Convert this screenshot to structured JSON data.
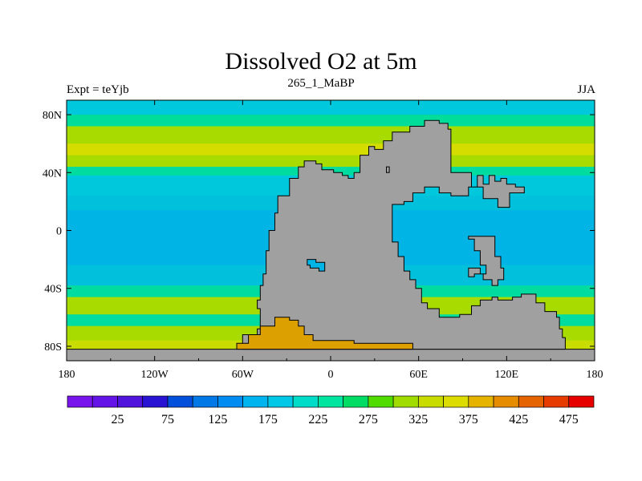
{
  "header": {
    "title": "Dissolved O2 at 5m",
    "subtitle": "265_1_MaBP",
    "left_label": "Expt = teYjb",
    "right_label": "JJA"
  },
  "map": {
    "lon_range": [
      -180,
      180
    ],
    "lat_range": [
      -90,
      90
    ],
    "x_ticks": [
      {
        "value": -180,
        "label": "180"
      },
      {
        "value": -120,
        "label": "120W"
      },
      {
        "value": -60,
        "label": "60W"
      },
      {
        "value": 0,
        "label": "0"
      },
      {
        "value": 60,
        "label": "60E"
      },
      {
        "value": 120,
        "label": "120E"
      },
      {
        "value": 180,
        "label": "180"
      }
    ],
    "y_ticks": [
      {
        "value": 80,
        "label": "80N"
      },
      {
        "value": 40,
        "label": "40N"
      },
      {
        "value": 0,
        "label": "0"
      },
      {
        "value": -40,
        "label": "40S"
      },
      {
        "value": -80,
        "label": "80S"
      }
    ],
    "land_color": "#a0a0a0",
    "ocean_bands": [
      {
        "lat_from": 90,
        "lat_to": 80,
        "color": "#00c8dc"
      },
      {
        "lat_from": 80,
        "lat_to": 72,
        "color": "#00dc9a"
      },
      {
        "lat_from": 72,
        "lat_to": 60,
        "color": "#a8dc00"
      },
      {
        "lat_from": 60,
        "lat_to": 52,
        "color": "#d4dc00"
      },
      {
        "lat_from": 52,
        "lat_to": 44,
        "color": "#a8dc00"
      },
      {
        "lat_from": 44,
        "lat_to": 38,
        "color": "#00dca0"
      },
      {
        "lat_from": 38,
        "lat_to": 24,
        "color": "#00c8dc"
      },
      {
        "lat_from": 24,
        "lat_to": 14,
        "color": "#00c0dc"
      },
      {
        "lat_from": 14,
        "lat_to": -24,
        "color": "#00b4e6"
      },
      {
        "lat_from": -24,
        "lat_to": -38,
        "color": "#00c0dc"
      },
      {
        "lat_from": -38,
        "lat_to": -46,
        "color": "#00dca0"
      },
      {
        "lat_from": -46,
        "lat_to": -58,
        "color": "#a8dc00"
      },
      {
        "lat_from": -58,
        "lat_to": -66,
        "color": "#00dca0"
      },
      {
        "lat_from": -66,
        "lat_to": -76,
        "color": "#a8dc00"
      },
      {
        "lat_from": -76,
        "lat_to": -90,
        "color": "#c8dc00"
      }
    ],
    "land_polygons": [
      [
        [
          -180,
          -90
        ],
        [
          180,
          -90
        ],
        [
          180,
          -82
        ],
        [
          -180,
          -82
        ]
      ],
      [
        [
          -60,
          -72
        ],
        [
          -50,
          -72
        ],
        [
          -50,
          -68
        ],
        [
          -48,
          -68
        ],
        [
          -48,
          -54
        ],
        [
          -50,
          -54
        ],
        [
          -50,
          -48
        ],
        [
          -48,
          -48
        ],
        [
          -48,
          -38
        ],
        [
          -46,
          -38
        ],
        [
          -46,
          -30
        ],
        [
          -44,
          -30
        ],
        [
          -44,
          -14
        ],
        [
          -42,
          -14
        ],
        [
          -42,
          0
        ],
        [
          -38,
          0
        ],
        [
          -38,
          12
        ],
        [
          -36,
          12
        ],
        [
          -36,
          24
        ],
        [
          -28,
          24
        ],
        [
          -28,
          36
        ],
        [
          -22,
          36
        ],
        [
          -22,
          44
        ],
        [
          -18,
          44
        ],
        [
          -18,
          48
        ],
        [
          -10,
          48
        ],
        [
          -10,
          46
        ],
        [
          -6,
          46
        ],
        [
          -6,
          42
        ],
        [
          2,
          42
        ],
        [
          2,
          40
        ],
        [
          8,
          40
        ],
        [
          8,
          38
        ],
        [
          12,
          38
        ],
        [
          12,
          36
        ],
        [
          16,
          36
        ],
        [
          16,
          40
        ],
        [
          20,
          40
        ],
        [
          20,
          52
        ],
        [
          26,
          52
        ],
        [
          26,
          58
        ],
        [
          30,
          58
        ],
        [
          30,
          56
        ],
        [
          36,
          56
        ],
        [
          36,
          62
        ],
        [
          42,
          62
        ],
        [
          42,
          68
        ],
        [
          54,
          68
        ],
        [
          54,
          72
        ],
        [
          64,
          72
        ],
        [
          64,
          76
        ],
        [
          74,
          76
        ],
        [
          74,
          74
        ],
        [
          80,
          74
        ],
        [
          80,
          70
        ],
        [
          82,
          70
        ],
        [
          82,
          40
        ],
        [
          96,
          40
        ],
        [
          96,
          30
        ],
        [
          100,
          30
        ],
        [
          100,
          38
        ],
        [
          104,
          38
        ],
        [
          104,
          32
        ],
        [
          108,
          32
        ],
        [
          108,
          38
        ],
        [
          112,
          38
        ],
        [
          112,
          34
        ],
        [
          116,
          34
        ],
        [
          116,
          36
        ],
        [
          120,
          36
        ],
        [
          120,
          32
        ],
        [
          126,
          32
        ],
        [
          126,
          30
        ],
        [
          132,
          30
        ],
        [
          132,
          26
        ],
        [
          122,
          26
        ],
        [
          122,
          16
        ],
        [
          114,
          16
        ],
        [
          114,
          22
        ],
        [
          104,
          22
        ],
        [
          104,
          30
        ],
        [
          94,
          30
        ],
        [
          94,
          24
        ],
        [
          82,
          24
        ],
        [
          82,
          26
        ],
        [
          74,
          26
        ],
        [
          74,
          30
        ],
        [
          64,
          30
        ],
        [
          64,
          26
        ],
        [
          56,
          26
        ],
        [
          56,
          20
        ],
        [
          50,
          20
        ],
        [
          50,
          18
        ],
        [
          42,
          18
        ],
        [
          42,
          -8
        ],
        [
          46,
          -8
        ],
        [
          46,
          -18
        ],
        [
          50,
          -18
        ],
        [
          50,
          -28
        ],
        [
          54,
          -28
        ],
        [
          54,
          -34
        ],
        [
          58,
          -34
        ],
        [
          58,
          -40
        ],
        [
          62,
          -40
        ],
        [
          62,
          -50
        ],
        [
          66,
          -50
        ],
        [
          66,
          -54
        ],
        [
          74,
          -54
        ],
        [
          74,
          -60
        ],
        [
          88,
          -60
        ],
        [
          88,
          -58
        ],
        [
          96,
          -58
        ],
        [
          96,
          -52
        ],
        [
          102,
          -52
        ],
        [
          102,
          -48
        ],
        [
          110,
          -48
        ],
        [
          110,
          -46
        ],
        [
          114,
          -46
        ],
        [
          114,
          -48
        ],
        [
          124,
          -48
        ],
        [
          124,
          -46
        ],
        [
          130,
          -46
        ],
        [
          130,
          -44
        ],
        [
          140,
          -44
        ],
        [
          140,
          -50
        ],
        [
          146,
          -50
        ],
        [
          146,
          -56
        ],
        [
          154,
          -56
        ],
        [
          154,
          -60
        ],
        [
          156,
          -60
        ],
        [
          156,
          -68
        ],
        [
          158,
          -68
        ],
        [
          158,
          -74
        ],
        [
          160,
          -74
        ],
        [
          160,
          -82
        ],
        [
          -60,
          -82
        ]
      ],
      [
        [
          38,
          40
        ],
        [
          40,
          40
        ],
        [
          40,
          44
        ],
        [
          38,
          44
        ]
      ],
      [
        [
          94,
          -4
        ],
        [
          112,
          -4
        ],
        [
          112,
          -18
        ],
        [
          116,
          -18
        ],
        [
          116,
          -26
        ],
        [
          118,
          -26
        ],
        [
          118,
          -34
        ],
        [
          114,
          -34
        ],
        [
          114,
          -38
        ],
        [
          110,
          -38
        ],
        [
          110,
          -34
        ],
        [
          104,
          -34
        ],
        [
          104,
          -30
        ],
        [
          98,
          -30
        ],
        [
          98,
          -32
        ],
        [
          94,
          -32
        ],
        [
          94,
          -26
        ],
        [
          102,
          -26
        ],
        [
          102,
          -30
        ],
        [
          106,
          -30
        ],
        [
          106,
          -24
        ],
        [
          102,
          -24
        ],
        [
          102,
          -14
        ],
        [
          98,
          -14
        ],
        [
          98,
          -6
        ],
        [
          94,
          -6
        ]
      ]
    ],
    "lake_polygons": [
      [
        [
          -16,
          -20
        ],
        [
          -10,
          -20
        ],
        [
          -10,
          -22
        ],
        [
          -4,
          -22
        ],
        [
          -4,
          -28
        ],
        [
          -8,
          -28
        ],
        [
          -8,
          -26
        ],
        [
          -14,
          -26
        ],
        [
          -14,
          -24
        ],
        [
          -16,
          -24
        ]
      ]
    ],
    "ice_polygon": [
      [
        -64,
        -82
      ],
      [
        -64,
        -78
      ],
      [
        -56,
        -78
      ],
      [
        -56,
        -72
      ],
      [
        -48,
        -72
      ],
      [
        -48,
        -66
      ],
      [
        -38,
        -66
      ],
      [
        -38,
        -60
      ],
      [
        -28,
        -60
      ],
      [
        -28,
        -62
      ],
      [
        -22,
        -62
      ],
      [
        -22,
        -66
      ],
      [
        -18,
        -66
      ],
      [
        -18,
        -72
      ],
      [
        -12,
        -72
      ],
      [
        -12,
        -76
      ],
      [
        16,
        -76
      ],
      [
        16,
        -78
      ],
      [
        56,
        -78
      ],
      [
        56,
        -82
      ]
    ],
    "ice_color": "#dca000"
  },
  "colorbar": {
    "colors": [
      "#7814ec",
      "#6414e6",
      "#5014dc",
      "#2814d2",
      "#0050dc",
      "#0078e6",
      "#008cf0",
      "#00b4f0",
      "#00c8e6",
      "#00dcc8",
      "#00e6a0",
      "#00dc64",
      "#50dc00",
      "#a0dc00",
      "#c8dc00",
      "#dcdc00",
      "#e6b400",
      "#e68c00",
      "#e66400",
      "#e63c00",
      "#e60000"
    ],
    "labels": [
      {
        "index": 1,
        "text": "25"
      },
      {
        "index": 3,
        "text": "75"
      },
      {
        "index": 5,
        "text": "125"
      },
      {
        "index": 7,
        "text": "175"
      },
      {
        "index": 9,
        "text": "225"
      },
      {
        "index": 11,
        "text": "275"
      },
      {
        "index": 13,
        "text": "325"
      },
      {
        "index": 15,
        "text": "375"
      },
      {
        "index": 17,
        "text": "425"
      },
      {
        "index": 19,
        "text": "475"
      }
    ]
  }
}
